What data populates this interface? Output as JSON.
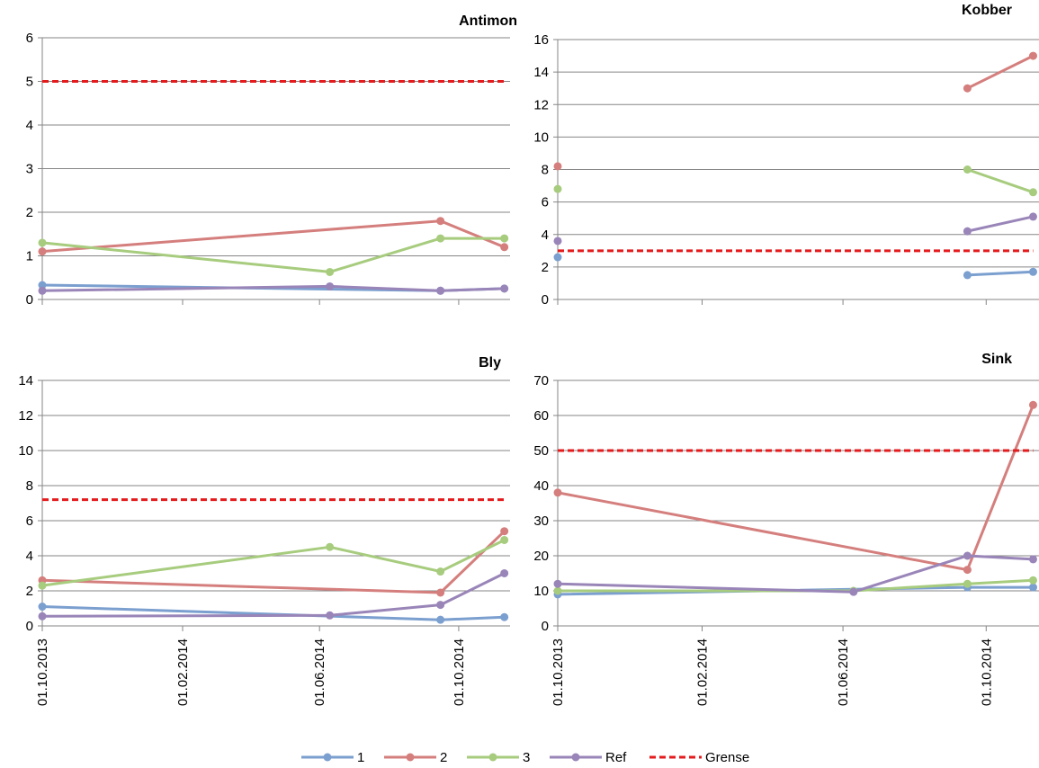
{
  "chart_data": [
    {
      "type": "line",
      "title": "Antimon",
      "xlabel": "",
      "ylabel": "",
      "ylim": [
        0,
        6
      ],
      "ystep": 1,
      "xlim": [
        "2013-10-01",
        "2014-11-15"
      ],
      "xticks": [
        "01.10.2013",
        "01.02.2014",
        "01.06.2014",
        "01.10.2014"
      ],
      "grid": true,
      "series": [
        {
          "name": "1",
          "points": [
            [
              "2013-10-01",
              0.33
            ],
            [
              "2014-09-15",
              0.2
            ],
            [
              "2014-11-10",
              0.25
            ]
          ]
        },
        {
          "name": "2",
          "points": [
            [
              "2013-10-01",
              1.1
            ],
            [
              "2014-09-15",
              1.8
            ],
            [
              "2014-11-10",
              1.2
            ]
          ]
        },
        {
          "name": "3",
          "points": [
            [
              "2013-10-01",
              1.3
            ],
            [
              "2014-06-10",
              0.63
            ],
            [
              "2014-09-15",
              1.4
            ],
            [
              "2014-11-10",
              1.4
            ]
          ]
        },
        {
          "name": "Ref",
          "points": [
            [
              "2013-10-01",
              0.2
            ],
            [
              "2014-06-10",
              0.3
            ],
            [
              "2014-09-15",
              0.2
            ],
            [
              "2014-11-10",
              0.25
            ]
          ]
        },
        {
          "name": "Grense",
          "points": [
            [
              "2013-10-01",
              5
            ],
            [
              "2014-11-10",
              5
            ]
          ]
        }
      ]
    },
    {
      "type": "line",
      "title": "Kobber",
      "xlabel": "",
      "ylabel": "",
      "ylim": [
        0,
        16
      ],
      "ystep": 2,
      "xlim": [
        "2013-10-01",
        "2014-11-15"
      ],
      "xticks": [
        "01.10.2013",
        "01.02.2014",
        "01.06.2014",
        "01.10.2014"
      ],
      "grid": true,
      "series": [
        {
          "name": "1",
          "points": [
            [
              "2013-10-01",
              2.6
            ],
            null,
            [
              "2014-09-15",
              1.5
            ],
            [
              "2014-11-10",
              1.7
            ]
          ]
        },
        {
          "name": "2",
          "points": [
            [
              "2013-10-01",
              8.2
            ],
            null,
            [
              "2014-09-15",
              13
            ],
            [
              "2014-11-10",
              15
            ]
          ]
        },
        {
          "name": "3",
          "points": [
            [
              "2013-10-01",
              6.8
            ],
            null,
            [
              "2014-09-15",
              8
            ],
            [
              "2014-11-10",
              6.6
            ]
          ]
        },
        {
          "name": "Ref",
          "points": [
            [
              "2013-10-01",
              3.6
            ],
            null,
            [
              "2014-09-15",
              4.2
            ],
            [
              "2014-11-10",
              5.1
            ]
          ]
        },
        {
          "name": "Grense",
          "points": [
            [
              "2013-10-01",
              3
            ],
            [
              "2014-11-10",
              3
            ]
          ]
        }
      ]
    },
    {
      "type": "line",
      "title": "Bly",
      "xlabel": "",
      "ylabel": "",
      "ylim": [
        0,
        14
      ],
      "ystep": 2,
      "xlim": [
        "2013-10-01",
        "2014-11-15"
      ],
      "xticks": [
        "01.10.2013",
        "01.02.2014",
        "01.06.2014",
        "01.10.2014"
      ],
      "grid": true,
      "series": [
        {
          "name": "1",
          "points": [
            [
              "2013-10-01",
              1.1
            ],
            [
              "2014-09-15",
              0.35
            ],
            [
              "2014-11-10",
              0.5
            ]
          ]
        },
        {
          "name": "2",
          "points": [
            [
              "2013-10-01",
              2.6
            ],
            [
              "2014-09-15",
              1.9
            ],
            [
              "2014-11-10",
              5.4
            ]
          ]
        },
        {
          "name": "3",
          "points": [
            [
              "2013-10-01",
              2.3
            ],
            [
              "2014-06-10",
              4.5
            ],
            [
              "2014-09-15",
              3.1
            ],
            [
              "2014-11-10",
              4.9
            ]
          ]
        },
        {
          "name": "Ref",
          "points": [
            [
              "2013-10-01",
              0.55
            ],
            [
              "2014-06-10",
              0.6
            ],
            [
              "2014-09-15",
              1.2
            ],
            [
              "2014-11-10",
              3
            ]
          ]
        },
        {
          "name": "Grense",
          "points": [
            [
              "2013-10-01",
              7.2
            ],
            [
              "2014-11-10",
              7.2
            ]
          ]
        }
      ]
    },
    {
      "type": "line",
      "title": "Sink",
      "xlabel": "",
      "ylabel": "",
      "ylim": [
        0,
        70
      ],
      "ystep": 10,
      "xlim": [
        "2013-10-01",
        "2014-11-15"
      ],
      "xticks": [
        "01.10.2013",
        "01.02.2014",
        "01.06.2014",
        "01.10.2014"
      ],
      "grid": true,
      "series": [
        {
          "name": "1",
          "points": [
            [
              "2013-10-01",
              9
            ],
            [
              "2014-09-15",
              11
            ],
            [
              "2014-11-10",
              11
            ]
          ]
        },
        {
          "name": "2",
          "points": [
            [
              "2013-10-01",
              38
            ],
            [
              "2014-09-15",
              16
            ],
            [
              "2014-11-10",
              63
            ]
          ]
        },
        {
          "name": "3",
          "points": [
            [
              "2013-10-01",
              10
            ],
            [
              "2014-06-10",
              10
            ],
            [
              "2014-09-15",
              12
            ],
            [
              "2014-11-10",
              13
            ]
          ]
        },
        {
          "name": "Ref",
          "points": [
            [
              "2013-10-01",
              12
            ],
            [
              "2014-06-10",
              9.7
            ],
            [
              "2014-09-15",
              20
            ],
            [
              "2014-11-10",
              19
            ]
          ]
        },
        {
          "name": "Grense",
          "points": [
            [
              "2013-10-01",
              50
            ],
            [
              "2014-11-10",
              50
            ]
          ]
        }
      ]
    }
  ],
  "legend": {
    "position": "bottom",
    "entries": [
      {
        "label": "1",
        "color": "#7b9fcf",
        "style": "line-marker"
      },
      {
        "label": "2",
        "color": "#d47f7d",
        "style": "line-marker"
      },
      {
        "label": "3",
        "color": "#a7cc7e",
        "style": "line-marker"
      },
      {
        "label": "Ref",
        "color": "#9985b8",
        "style": "line-marker"
      },
      {
        "label": "Grense",
        "color": "#e41a1c",
        "style": "dashed"
      }
    ]
  },
  "colors": {
    "1": "#7b9fcf",
    "2": "#d47f7d",
    "3": "#a7cc7e",
    "Ref": "#9985b8",
    "Grense": "#e41a1c",
    "grid": "#868686"
  }
}
